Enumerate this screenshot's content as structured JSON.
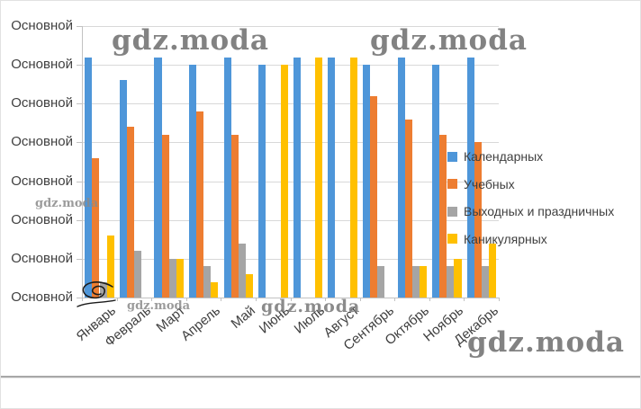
{
  "watermarks": {
    "top_left": {
      "text": "gdz.moda"
    },
    "top_right": {
      "text": "gdz.moda"
    },
    "mid_left": {
      "text": "gdz.moda"
    },
    "bottom_small": {
      "text": "gdz.moda"
    },
    "bottom_center": {
      "text": "gdz.moda"
    },
    "bottom_right": {
      "text": "gdz.moda"
    }
  },
  "chart_data": {
    "type": "bar",
    "title": "",
    "xlabel": "",
    "ylabel": "",
    "categories": [
      "Январь",
      "Февраль",
      "Март",
      "Апрель",
      "Май",
      "Июнь",
      "Июль",
      "Август",
      "Сентябрь",
      "Октябрь",
      "Ноябрь",
      "Декабрь"
    ],
    "series": [
      {
        "name": "Календарных",
        "color": "#4E96D9",
        "values": [
          31,
          28,
          31,
          30,
          31,
          30,
          31,
          31,
          30,
          31,
          30,
          31
        ]
      },
      {
        "name": "Учебных",
        "color": "#ED7D31",
        "values": [
          18,
          22,
          21,
          24,
          21,
          0,
          0,
          0,
          26,
          23,
          21,
          20
        ]
      },
      {
        "name": "Выходных и праздничных",
        "color": "#A5A5A5",
        "values": [
          2,
          6,
          5,
          4,
          7,
          0,
          0,
          0,
          4,
          4,
          4,
          4
        ]
      },
      {
        "name": "Каникулярных",
        "color": "#FFC000",
        "values": [
          8,
          0,
          5,
          2,
          3,
          30,
          31,
          31,
          0,
          4,
          5,
          7
        ]
      }
    ],
    "y_axis": {
      "min": 0,
      "max": 35,
      "step": 5,
      "tick_labels": [
        "Основной",
        "Основной",
        "Основной",
        "Основной",
        "Основной",
        "Основной",
        "Основной",
        "Основной"
      ]
    },
    "grid": true,
    "legend_position": "right-overlapping-plot"
  }
}
